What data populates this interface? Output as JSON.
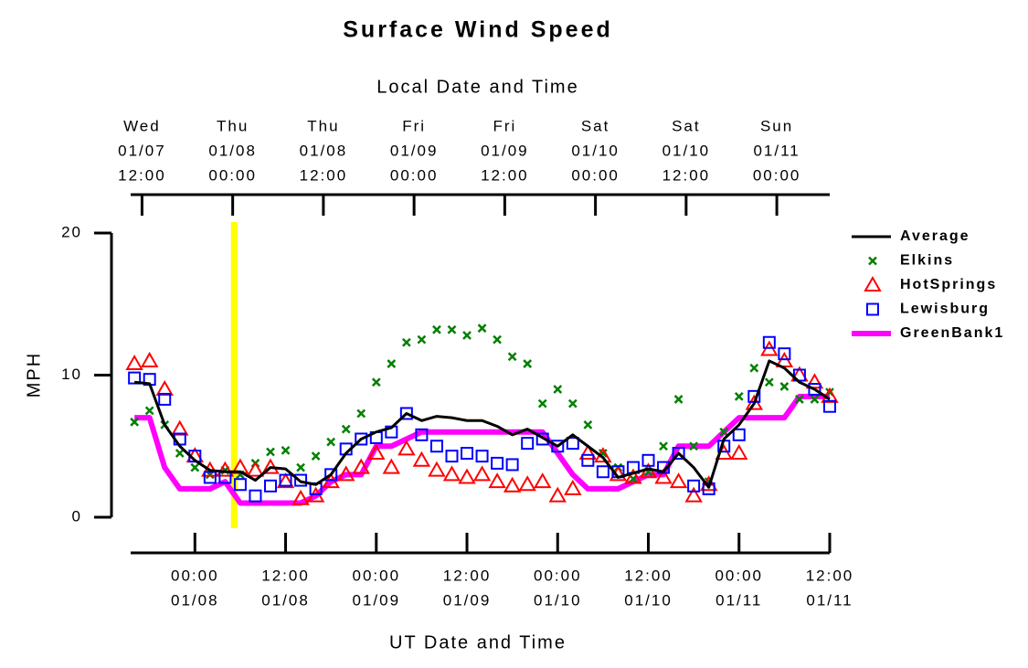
{
  "chart_data": {
    "type": "line",
    "title": "Surface Wind Speed",
    "x2label": "Local Date and Time",
    "xlabel": "UT Date and Time",
    "ylabel": "MPH",
    "xlim": [
      -8.5,
      84
    ],
    "xticks": [
      {
        "value": 0,
        "label": [
          "00:00",
          "01/08"
        ]
      },
      {
        "value": 12,
        "label": [
          "12:00",
          "01/08"
        ]
      },
      {
        "value": 24,
        "label": [
          "00:00",
          "01/09"
        ]
      },
      {
        "value": 36,
        "label": [
          "12:00",
          "01/09"
        ]
      },
      {
        "value": 48,
        "label": [
          "00:00",
          "01/10"
        ]
      },
      {
        "value": 60,
        "label": [
          "12:00",
          "01/10"
        ]
      },
      {
        "value": 72,
        "label": [
          "00:00",
          "01/11"
        ]
      },
      {
        "value": 84,
        "label": [
          "12:00",
          "01/11"
        ]
      }
    ],
    "x2lim": [
      -13.5,
      79
    ],
    "x2ticks": [
      {
        "value": -12,
        "label": [
          "Wed",
          "01/07",
          "12:00"
        ]
      },
      {
        "value": 0,
        "label": [
          "Thu",
          "01/08",
          "00:00"
        ]
      },
      {
        "value": 12,
        "label": [
          "Thu",
          "01/08",
          "12:00"
        ]
      },
      {
        "value": 24,
        "label": [
          "Fri",
          "01/09",
          "00:00"
        ]
      },
      {
        "value": 36,
        "label": [
          "Fri",
          "01/09",
          "12:00"
        ]
      },
      {
        "value": 48,
        "label": [
          "Sat",
          "01/10",
          "00:00"
        ]
      },
      {
        "value": 60,
        "label": [
          "Sat",
          "01/10",
          "12:00"
        ]
      },
      {
        "value": 72,
        "label": [
          "Sun",
          "01/11",
          "00:00"
        ]
      }
    ],
    "ylim": [
      0,
      20
    ],
    "yticks": [
      0,
      10,
      20
    ],
    "vline": {
      "x": 5.2,
      "color": "#ffff00"
    },
    "x": [
      -8,
      -6,
      -4,
      -2,
      0,
      2,
      4,
      6,
      8,
      10,
      12,
      14,
      16,
      18,
      20,
      22,
      24,
      26,
      28,
      30,
      32,
      34,
      36,
      38,
      40,
      42,
      44,
      46,
      48,
      50,
      52,
      54,
      56,
      58,
      60,
      62,
      64,
      66,
      68,
      70,
      72,
      74,
      76,
      78,
      80,
      82,
      84
    ],
    "series": [
      {
        "name": "Average",
        "color": "#000000",
        "marker": "line",
        "width": 3,
        "values": [
          9.5,
          9.4,
          6.5,
          5,
          4,
          3.3,
          3.2,
          3.2,
          2.6,
          3.5,
          3.4,
          2.5,
          2.3,
          3,
          4.5,
          5.5,
          6,
          6.3,
          7.3,
          6.8,
          7.1,
          7,
          6.8,
          6.8,
          6.4,
          5.8,
          6.2,
          5.6,
          5,
          5.8,
          5,
          4.2,
          2.8,
          3.1,
          3.4,
          3.2,
          4.5,
          3.5,
          2.1,
          5.5,
          6.5,
          8,
          11,
          10.5,
          9.5,
          9,
          8.3
        ]
      },
      {
        "name": "Elkins",
        "color": "#008000",
        "marker": "x",
        "values": [
          6.7,
          7.5,
          6.5,
          4.5,
          3.5,
          3,
          3.3,
          3,
          3.8,
          4.6,
          4.7,
          3.5,
          4.3,
          5.3,
          6.2,
          7.3,
          9.5,
          10.8,
          12.3,
          12.5,
          13.2,
          13.2,
          12.8,
          13.3,
          12.5,
          11.3,
          10.8,
          8,
          9,
          8,
          6.5,
          4.5,
          3.5,
          2.7,
          3.2,
          5,
          8.3,
          5,
          2.5,
          6,
          8.5,
          10.5,
          9.5,
          9.2,
          8.3,
          8.3,
          8.8
        ]
      },
      {
        "name": "HotSprings",
        "color": "#ff0000",
        "marker": "triangle",
        "values": [
          10.8,
          11,
          9,
          6.2,
          4.3,
          3.3,
          3.3,
          3.5,
          3.3,
          3.5,
          2.5,
          1.3,
          1.5,
          2.5,
          3,
          3.5,
          4.5,
          3.5,
          4.8,
          4,
          3.3,
          3,
          2.8,
          3,
          2.5,
          2.2,
          2.3,
          2.5,
          1.5,
          2,
          4.5,
          4.3,
          3,
          2.8,
          3.2,
          2.8,
          2.5,
          1.5,
          2.3,
          4.5,
          4.5,
          8,
          11.8,
          11,
          10,
          9.5,
          8.5
        ]
      },
      {
        "name": "Lewisburg",
        "color": "#0000ff",
        "marker": "square",
        "values": [
          9.8,
          9.7,
          8.3,
          5.5,
          4.3,
          2.8,
          2.8,
          2.3,
          1.5,
          2.2,
          2.6,
          2.6,
          2,
          3,
          4.8,
          5.5,
          5.6,
          6,
          7.3,
          5.8,
          5,
          4.3,
          4.5,
          4.3,
          3.8,
          3.7,
          5.2,
          5.5,
          5,
          5.2,
          4,
          3.2,
          3.2,
          3.5,
          4,
          3.5,
          4.5,
          2.2,
          2,
          5,
          5.8,
          8.5,
          12.3,
          11.5,
          10,
          9,
          7.8
        ]
      },
      {
        "name": "GreenBank1",
        "color": "#ff00ff",
        "marker": "line",
        "width": 6,
        "values": [
          7,
          7,
          3.5,
          2,
          2,
          2,
          2.5,
          1,
          1,
          1,
          1,
          1,
          1.5,
          2.5,
          3,
          3,
          5,
          5,
          5.5,
          6,
          6,
          6,
          6,
          6,
          6,
          6,
          6,
          6,
          4.5,
          3,
          2,
          2,
          2,
          2.5,
          3,
          3,
          5,
          5,
          5,
          6,
          7,
          7,
          7,
          7,
          8.5,
          8.5,
          8.5
        ]
      }
    ]
  }
}
